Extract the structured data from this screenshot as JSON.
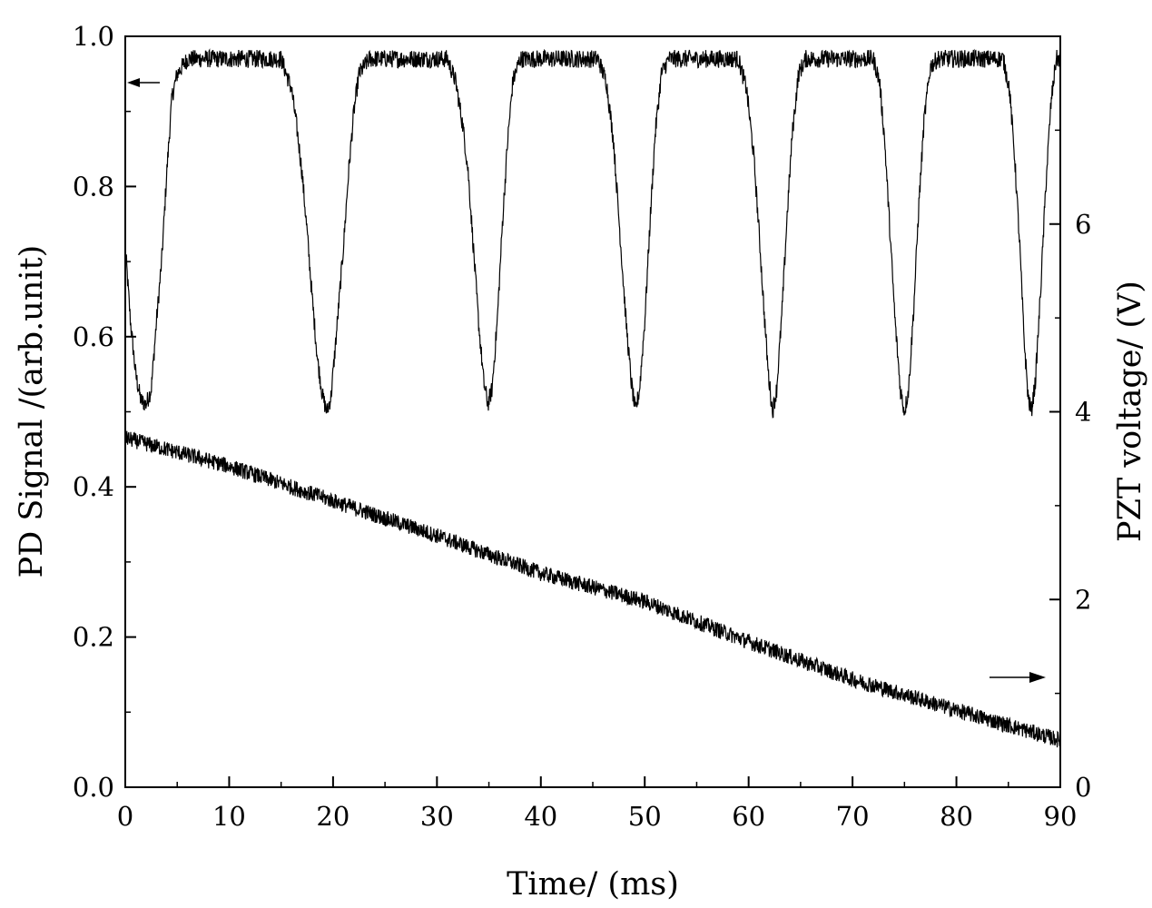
{
  "chart_data": {
    "type": "line",
    "title": "",
    "xlabel": "Time/ (ms)",
    "ylabel_left": "PD Signal /(arb.unit)",
    "ylabel_right": "PZT voltage/ (V)",
    "xlim": [
      0,
      90
    ],
    "ylim_left": [
      0,
      1.0
    ],
    "ylim_right": [
      0,
      8
    ],
    "x_ticks": [
      0,
      10,
      20,
      30,
      40,
      50,
      60,
      70,
      80,
      90
    ],
    "x_tick_labels": [
      "0",
      "10",
      "20",
      "30",
      "40",
      "50",
      "60",
      "70",
      "80",
      "90"
    ],
    "y_left_ticks": [
      0.0,
      0.2,
      0.4,
      0.6,
      0.8,
      1.0
    ],
    "y_left_tick_labels": [
      "0.0",
      "0.2",
      "0.4",
      "0.6",
      "0.8",
      "1.0"
    ],
    "y_right_ticks": [
      0,
      2,
      4,
      6
    ],
    "y_right_tick_labels": [
      "0",
      "2",
      "4",
      "6"
    ],
    "grid": false,
    "legend": "none",
    "color": "#000000",
    "series": [
      {
        "axis": "left",
        "points": [
          [
            0.0,
            0.72
          ],
          [
            0.5,
            0.62
          ],
          [
            1.0,
            0.55
          ],
          [
            1.5,
            0.515
          ],
          [
            2.0,
            0.51
          ],
          [
            2.5,
            0.53
          ],
          [
            3.0,
            0.62
          ],
          [
            3.5,
            0.7
          ],
          [
            4.0,
            0.82
          ],
          [
            4.5,
            0.92
          ],
          [
            5.0,
            0.95
          ],
          [
            6.0,
            0.97
          ],
          [
            15.0,
            0.97
          ],
          [
            16.0,
            0.93
          ],
          [
            16.5,
            0.88
          ],
          [
            17.0,
            0.82
          ],
          [
            17.5,
            0.74
          ],
          [
            18.0,
            0.65
          ],
          [
            18.5,
            0.57
          ],
          [
            19.0,
            0.52
          ],
          [
            19.4,
            0.5
          ],
          [
            19.8,
            0.52
          ],
          [
            20.3,
            0.6
          ],
          [
            21.0,
            0.72
          ],
          [
            21.5,
            0.82
          ],
          [
            22.0,
            0.9
          ],
          [
            22.5,
            0.95
          ],
          [
            23.5,
            0.97
          ],
          [
            31.0,
            0.97
          ],
          [
            31.8,
            0.94
          ],
          [
            32.5,
            0.88
          ],
          [
            33.0,
            0.82
          ],
          [
            33.5,
            0.72
          ],
          [
            34.0,
            0.62
          ],
          [
            34.5,
            0.54
          ],
          [
            34.9,
            0.51
          ],
          [
            35.3,
            0.53
          ],
          [
            35.8,
            0.62
          ],
          [
            36.3,
            0.75
          ],
          [
            36.8,
            0.86
          ],
          [
            37.3,
            0.94
          ],
          [
            38.0,
            0.97
          ],
          [
            45.5,
            0.97
          ],
          [
            46.3,
            0.94
          ],
          [
            47.0,
            0.86
          ],
          [
            47.6,
            0.74
          ],
          [
            48.2,
            0.62
          ],
          [
            48.7,
            0.54
          ],
          [
            49.1,
            0.5
          ],
          [
            49.5,
            0.53
          ],
          [
            50.0,
            0.62
          ],
          [
            50.5,
            0.75
          ],
          [
            51.0,
            0.87
          ],
          [
            51.6,
            0.95
          ],
          [
            52.3,
            0.97
          ],
          [
            59.0,
            0.97
          ],
          [
            59.8,
            0.93
          ],
          [
            60.5,
            0.84
          ],
          [
            61.0,
            0.74
          ],
          [
            61.5,
            0.63
          ],
          [
            61.9,
            0.55
          ],
          [
            62.3,
            0.5
          ],
          [
            62.7,
            0.53
          ],
          [
            63.2,
            0.63
          ],
          [
            63.7,
            0.76
          ],
          [
            64.2,
            0.87
          ],
          [
            64.8,
            0.95
          ],
          [
            65.5,
            0.97
          ],
          [
            72.0,
            0.97
          ],
          [
            72.6,
            0.94
          ],
          [
            73.1,
            0.86
          ],
          [
            73.6,
            0.74
          ],
          [
            74.1,
            0.62
          ],
          [
            74.6,
            0.53
          ],
          [
            75.0,
            0.5
          ],
          [
            75.4,
            0.53
          ],
          [
            75.9,
            0.64
          ],
          [
            76.4,
            0.78
          ],
          [
            76.9,
            0.89
          ],
          [
            77.5,
            0.96
          ],
          [
            78.2,
            0.97
          ],
          [
            84.5,
            0.97
          ],
          [
            85.1,
            0.93
          ],
          [
            85.6,
            0.84
          ],
          [
            86.1,
            0.72
          ],
          [
            86.5,
            0.6
          ],
          [
            86.9,
            0.52
          ],
          [
            87.2,
            0.5
          ],
          [
            87.6,
            0.54
          ],
          [
            88.1,
            0.66
          ],
          [
            88.6,
            0.8
          ],
          [
            89.1,
            0.91
          ],
          [
            89.6,
            0.97
          ],
          [
            90.0,
            0.97
          ]
        ]
      },
      {
        "axis": "right",
        "points": [
          [
            0.0,
            3.72
          ],
          [
            10.0,
            3.42
          ],
          [
            20.0,
            3.05
          ],
          [
            30.0,
            2.68
          ],
          [
            40.0,
            2.28
          ],
          [
            50.0,
            1.98
          ],
          [
            60.0,
            1.55
          ],
          [
            70.0,
            1.15
          ],
          [
            80.0,
            0.82
          ],
          [
            90.0,
            0.5
          ]
        ]
      }
    ]
  }
}
